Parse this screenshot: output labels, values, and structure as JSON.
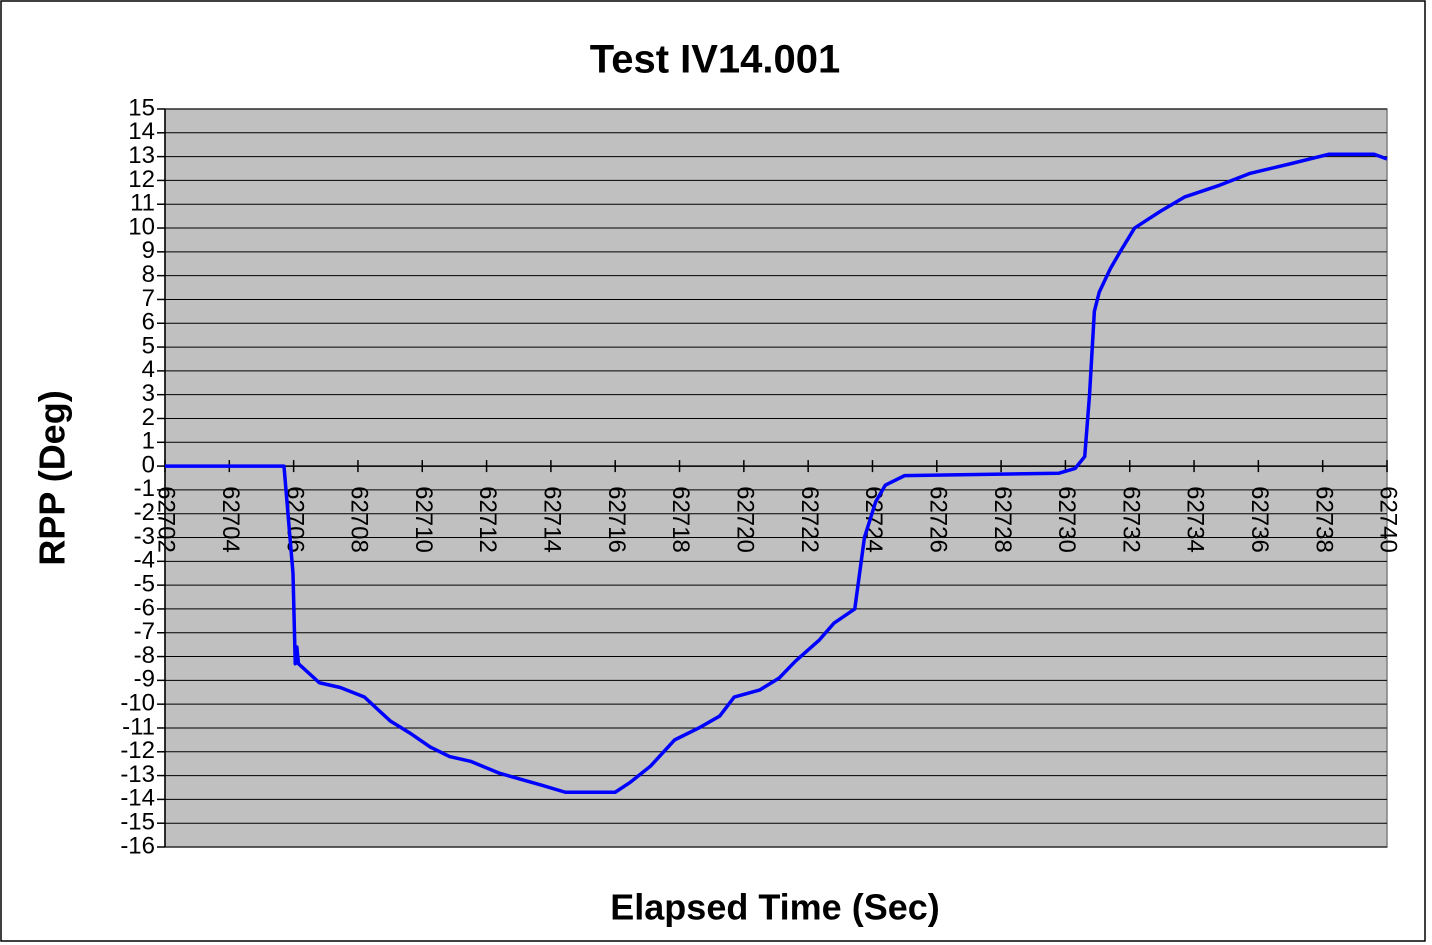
{
  "chart_data": {
    "type": "line",
    "title": "Test IV14.001",
    "x_label": "Elapsed Time (Sec)",
    "y_label": "RPP (Deg)",
    "x": [
      62702,
      62705.7,
      62705.98,
      62706.05,
      62706.1,
      62706.15,
      62706.8,
      62707.45,
      62708.2,
      62709.0,
      62709.6,
      62710.25,
      62710.85,
      62711.5,
      62712.4,
      62713.7,
      62714.45,
      62716.0,
      62716.45,
      62717.1,
      62717.85,
      62718.6,
      62719.25,
      62719.7,
      62720.5,
      62721.1,
      62721.6,
      62722.35,
      62722.8,
      62723.45,
      62723.6,
      62723.75,
      62724.1,
      62724.4,
      62725.0,
      62729.8,
      62730.3,
      62730.6,
      62730.75,
      62730.9,
      62731.05,
      62731.4,
      62731.7,
      62732.15,
      62732.95,
      62733.7,
      62734.8,
      62735.75,
      62737.0,
      62738.2,
      62739.6,
      62740.0
    ],
    "series": [
      {
        "name": "RPP",
        "color": "#0000ff",
        "values": [
          0,
          0,
          -4.5,
          -8.3,
          -7.6,
          -8.3,
          -9.1,
          -9.3,
          -9.7,
          -10.7,
          -11.2,
          -11.8,
          -12.2,
          -12.4,
          -12.9,
          -13.4,
          -13.7,
          -13.7,
          -13.3,
          -12.6,
          -11.5,
          -11.0,
          -10.5,
          -9.7,
          -9.4,
          -8.9,
          -8.2,
          -7.3,
          -6.6,
          -6.0,
          -4.5,
          -3.0,
          -1.5,
          -0.8,
          -0.4,
          -0.3,
          -0.1,
          0.4,
          3.0,
          6.5,
          7.3,
          8.3,
          9.0,
          10.0,
          10.7,
          11.3,
          11.8,
          12.3,
          12.7,
          13.1,
          13.1,
          12.9
        ]
      }
    ],
    "xlim": [
      62702,
      62740
    ],
    "xticks": [
      62702,
      62704,
      62706,
      62708,
      62710,
      62712,
      62714,
      62716,
      62718,
      62720,
      62722,
      62724,
      62726,
      62728,
      62730,
      62732,
      62734,
      62736,
      62738,
      62740
    ],
    "ylim": [
      -16,
      15
    ],
    "yticks": [
      -16,
      -15,
      -14,
      -13,
      -12,
      -11,
      -10,
      -9,
      -8,
      -7,
      -6,
      -5,
      -4,
      -3,
      -2,
      -1,
      0,
      1,
      2,
      3,
      4,
      5,
      6,
      7,
      8,
      9,
      10,
      11,
      12,
      13,
      14,
      15
    ],
    "grid": true
  }
}
